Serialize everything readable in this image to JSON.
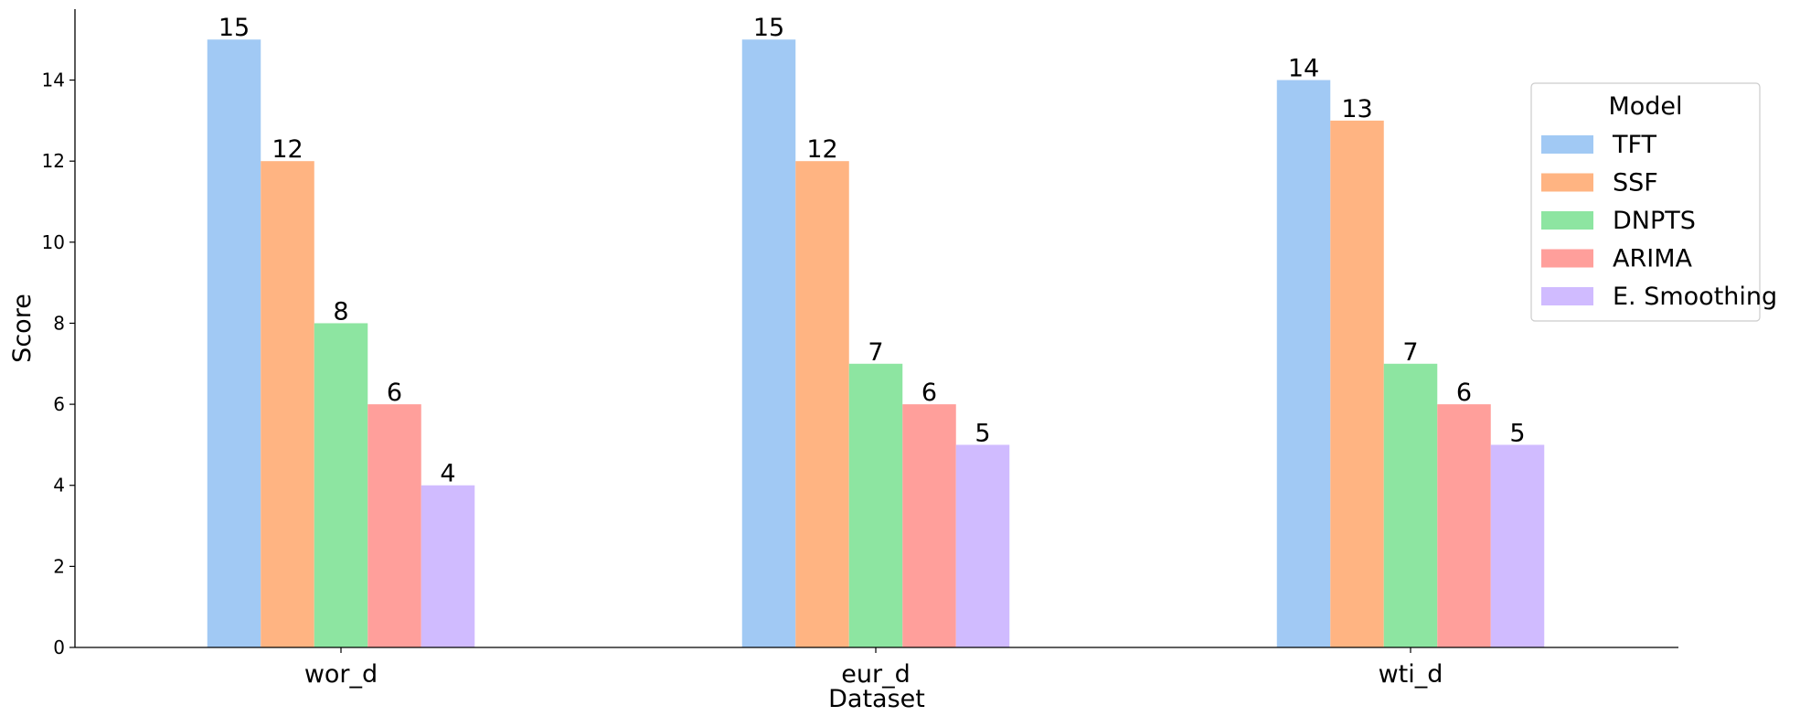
{
  "chart_data": {
    "type": "bar",
    "title": "",
    "xlabel": "Dataset",
    "ylabel": "Score",
    "categories": [
      "wor_d",
      "eur_d",
      "wti_d"
    ],
    "series": [
      {
        "name": "TFT",
        "values": [
          15,
          15,
          14
        ],
        "color": "#a1c9f4"
      },
      {
        "name": "SSF",
        "values": [
          12,
          12,
          13
        ],
        "color": "#ffb482"
      },
      {
        "name": "DNPTS",
        "values": [
          8,
          7,
          7
        ],
        "color": "#8de5a1"
      },
      {
        "name": "ARIMA",
        "values": [
          6,
          6,
          6
        ],
        "color": "#ff9f9b"
      },
      {
        "name": "E. Smoothing",
        "values": [
          4,
          5,
          5
        ],
        "color": "#d0bbff"
      }
    ],
    "ylim": [
      0,
      15.75
    ],
    "yticks": [
      0,
      2,
      4,
      6,
      8,
      10,
      12,
      14
    ],
    "grid": false,
    "legend": {
      "title": "Model",
      "placement": "right"
    }
  }
}
